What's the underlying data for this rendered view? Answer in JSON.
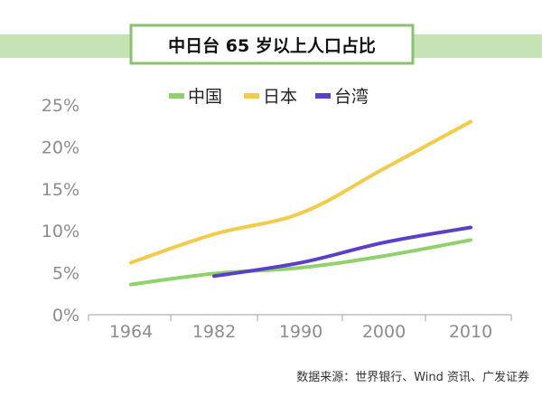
{
  "title": "中日台 65 岁以上人口占比",
  "source": "数据来源：世界银行、Wind 资讯、广发证券",
  "colors": {
    "header_band": "#c6e3b5",
    "title_border": "#8ac06f",
    "axis_text": "#8c8c8c",
    "axis_line": "#b0b0b0"
  },
  "chart_data": {
    "type": "line",
    "title": "中日台 65 岁以上人口占比",
    "xlabel": "",
    "ylabel": "",
    "categories": [
      "1964",
      "1982",
      "1990",
      "2000",
      "2010"
    ],
    "ylim": [
      0,
      25
    ],
    "y_ticks": [
      "0%",
      "5%",
      "10%",
      "15%",
      "20%",
      "25%"
    ],
    "grid": false,
    "legend_position": "top",
    "series": [
      {
        "name": "中国",
        "color": "#8fd16a",
        "values": [
          3.6,
          4.9,
          5.6,
          7.0,
          8.9
        ]
      },
      {
        "name": "日本",
        "color": "#f0cc4a",
        "values": [
          6.2,
          9.6,
          12.1,
          17.4,
          23.0
        ]
      },
      {
        "name": "台湾",
        "color": "#5b3fc8",
        "values": [
          null,
          4.6,
          6.2,
          8.6,
          10.4
        ]
      }
    ]
  }
}
